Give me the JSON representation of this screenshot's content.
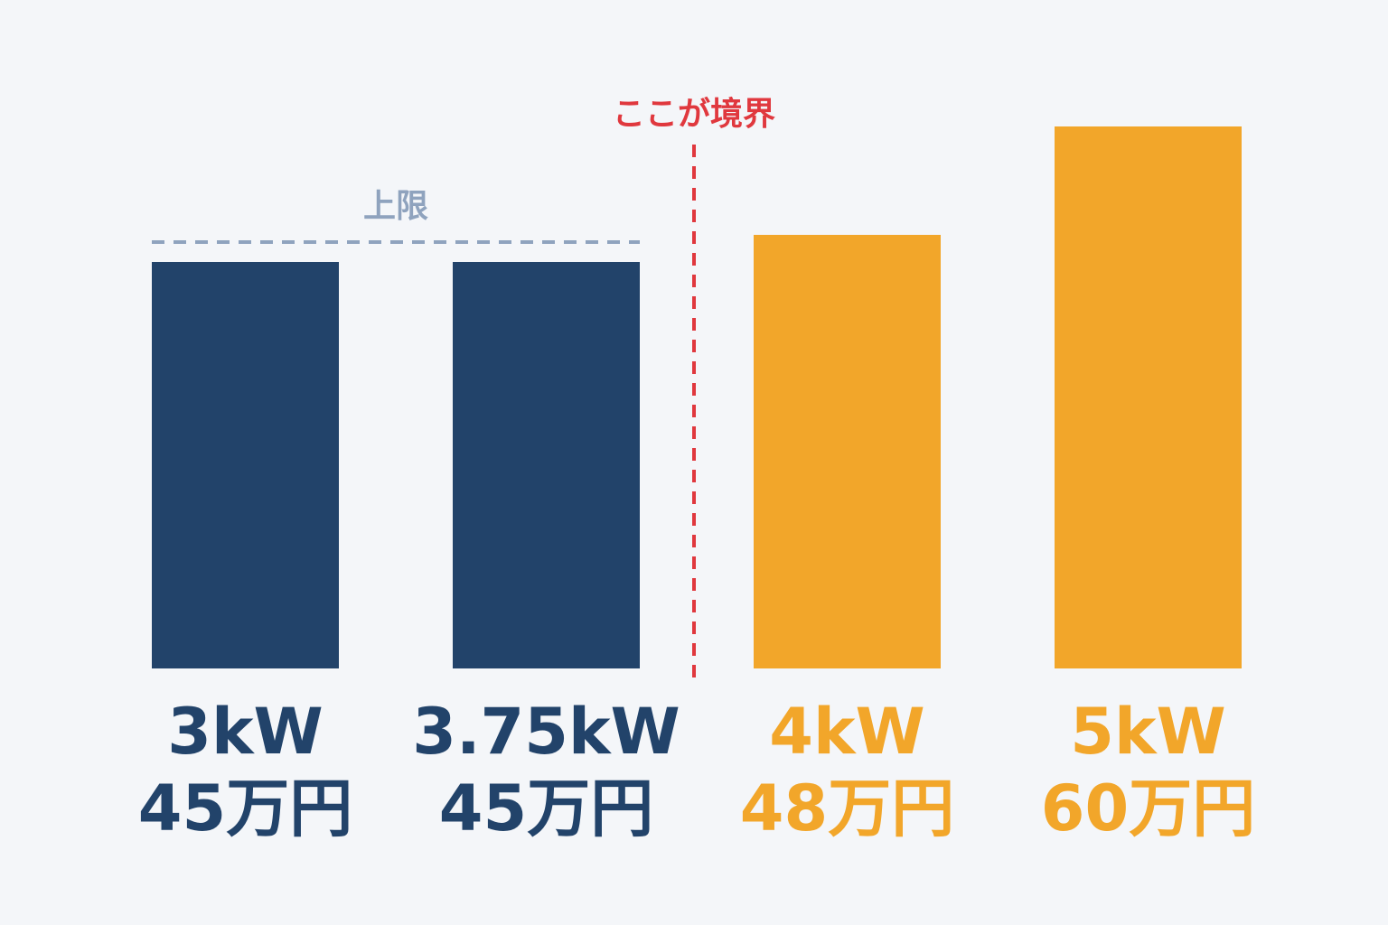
{
  "chart_data": {
    "type": "bar",
    "categories": [
      "3kW",
      "3.75kW",
      "4kW",
      "5kW"
    ],
    "values": [
      45,
      45,
      48,
      60
    ],
    "value_labels": [
      "45万円",
      "45万円",
      "48万円",
      "60万円"
    ],
    "colors": [
      "#22436a",
      "#22436a",
      "#f2a62a",
      "#f2a62a"
    ],
    "annotations": [
      {
        "text": "上限",
        "color": "#8fa3be"
      },
      {
        "text": "ここが境界",
        "color": "#e0383e"
      }
    ]
  }
}
